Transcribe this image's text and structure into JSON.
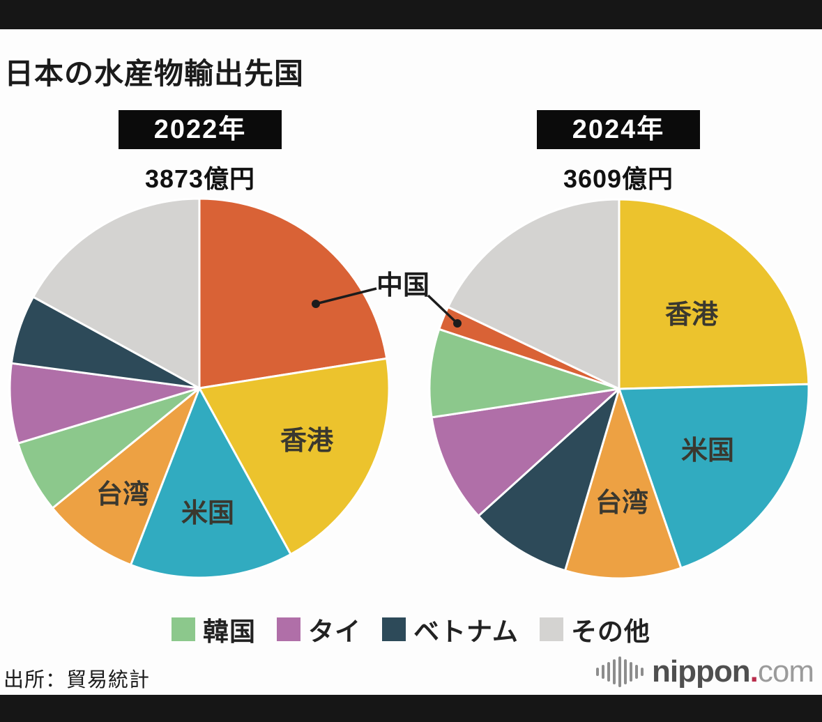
{
  "page": {
    "title": "日本の水産物輸出先国",
    "source": "出所：貿易統計"
  },
  "callout": {
    "label": "中国"
  },
  "legend": [
    {
      "id": "korea",
      "label": "韓国",
      "color": "#8cc88c"
    },
    {
      "id": "thailand",
      "label": "タイ",
      "color": "#b06fa8"
    },
    {
      "id": "vietnam",
      "label": "ベトナム",
      "color": "#2d4a59"
    },
    {
      "id": "others",
      "label": "その他",
      "color": "#d4d3d1"
    }
  ],
  "brand": {
    "main": "nippon",
    "dot": ".",
    "suffix": "com"
  },
  "chart_data": [
    {
      "type": "pie",
      "title": "2022年",
      "total": "3873億円",
      "total_value_oku_yen": 3873,
      "start_angle_deg": 0,
      "direction": "clockwise",
      "legend_position": "bottom",
      "slices": [
        {
          "id": "china",
          "label": "中国",
          "percent_est": 22.5,
          "color": "#d96236",
          "label_style": "callout"
        },
        {
          "id": "hongkong",
          "label": "香港",
          "percent_est": 19.5,
          "color": "#ecc32d",
          "label_style": "inside"
        },
        {
          "id": "usa",
          "label": "米国",
          "percent_est": 13.9,
          "color": "#31abc0",
          "label_style": "inside"
        },
        {
          "id": "taiwan",
          "label": "台湾",
          "percent_est": 8.2,
          "color": "#eda143",
          "label_style": "inside"
        },
        {
          "id": "korea",
          "label": "韓国",
          "percent_est": 6.2,
          "color": "#8cc88c",
          "label_style": "legend"
        },
        {
          "id": "thailand",
          "label": "タイ",
          "percent_est": 6.8,
          "color": "#b06fa8",
          "label_style": "legend"
        },
        {
          "id": "vietnam",
          "label": "ベトナム",
          "percent_est": 5.9,
          "color": "#2d4a59",
          "label_style": "legend"
        },
        {
          "id": "others",
          "label": "その他",
          "percent_est": 17.0,
          "color": "#d4d3d1",
          "label_style": "legend"
        }
      ]
    },
    {
      "type": "pie",
      "title": "2024年",
      "total": "3609億円",
      "total_value_oku_yen": 3609,
      "start_angle_deg": 0,
      "direction": "clockwise",
      "legend_position": "bottom",
      "slices": [
        {
          "id": "hongkong",
          "label": "香港",
          "percent_est": 24.6,
          "color": "#ecc32d",
          "label_style": "inside"
        },
        {
          "id": "usa",
          "label": "米国",
          "percent_est": 20.1,
          "color": "#31abc0",
          "label_style": "inside"
        },
        {
          "id": "taiwan",
          "label": "台湾",
          "percent_est": 9.9,
          "color": "#eda143",
          "label_style": "inside"
        },
        {
          "id": "vietnam",
          "label": "ベトナム",
          "percent_est": 8.7,
          "color": "#2d4a59",
          "label_style": "legend"
        },
        {
          "id": "thailand",
          "label": "タイ",
          "percent_est": 9.3,
          "color": "#b06fa8",
          "label_style": "legend"
        },
        {
          "id": "korea",
          "label": "韓国",
          "percent_est": 7.5,
          "color": "#8cc88c",
          "label_style": "legend"
        },
        {
          "id": "china",
          "label": "中国",
          "percent_est": 2.0,
          "color": "#d96236",
          "label_style": "callout"
        },
        {
          "id": "others",
          "label": "その他",
          "percent_est": 17.9,
          "color": "#d4d3d1",
          "label_style": "legend"
        }
      ]
    }
  ]
}
